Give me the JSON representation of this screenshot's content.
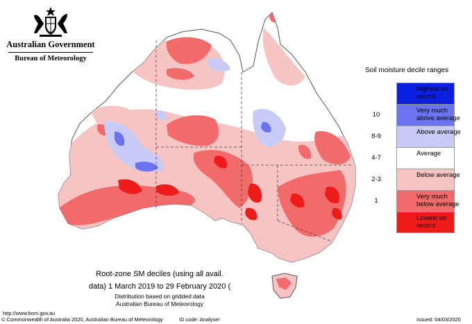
{
  "header": {
    "government": "Australian Government",
    "bureau": "Bureau of Meteorology"
  },
  "legend": {
    "title": "Soil moisture decile ranges",
    "items": [
      {
        "range": "",
        "label": "Highest on record",
        "color": "#0b1fe0"
      },
      {
        "range": "10",
        "label": "Very much above average",
        "color": "#6c73f0"
      },
      {
        "range": "8-9",
        "label": "Above average",
        "color": "#c8cbf5"
      },
      {
        "range": "4-7",
        "label": "Average",
        "color": "#ffffff"
      },
      {
        "range": "2-3",
        "label": "Below average",
        "color": "#f7c4c4"
      },
      {
        "range": "1",
        "label": "Very much below average",
        "color": "#f26b6b"
      },
      {
        "range": "",
        "label": "Lowest on record",
        "color": "#ee1b1b"
      }
    ]
  },
  "caption": {
    "line1": "Root-zone SM deciles (using all avail.",
    "line2": "data) 1 March 2019 to 29 February 2020 (",
    "line3": "Distribution based on gridded data",
    "line4": "Australian Bureau of Meteorology"
  },
  "footer": {
    "url": "http://www.bom.gov.au",
    "copyright": "© Commonwealth of Australia 2020, Australian Bureau of Meteorology",
    "id_code": "ID code: Analyser",
    "issued": "Issued: 04/03/2020"
  }
}
